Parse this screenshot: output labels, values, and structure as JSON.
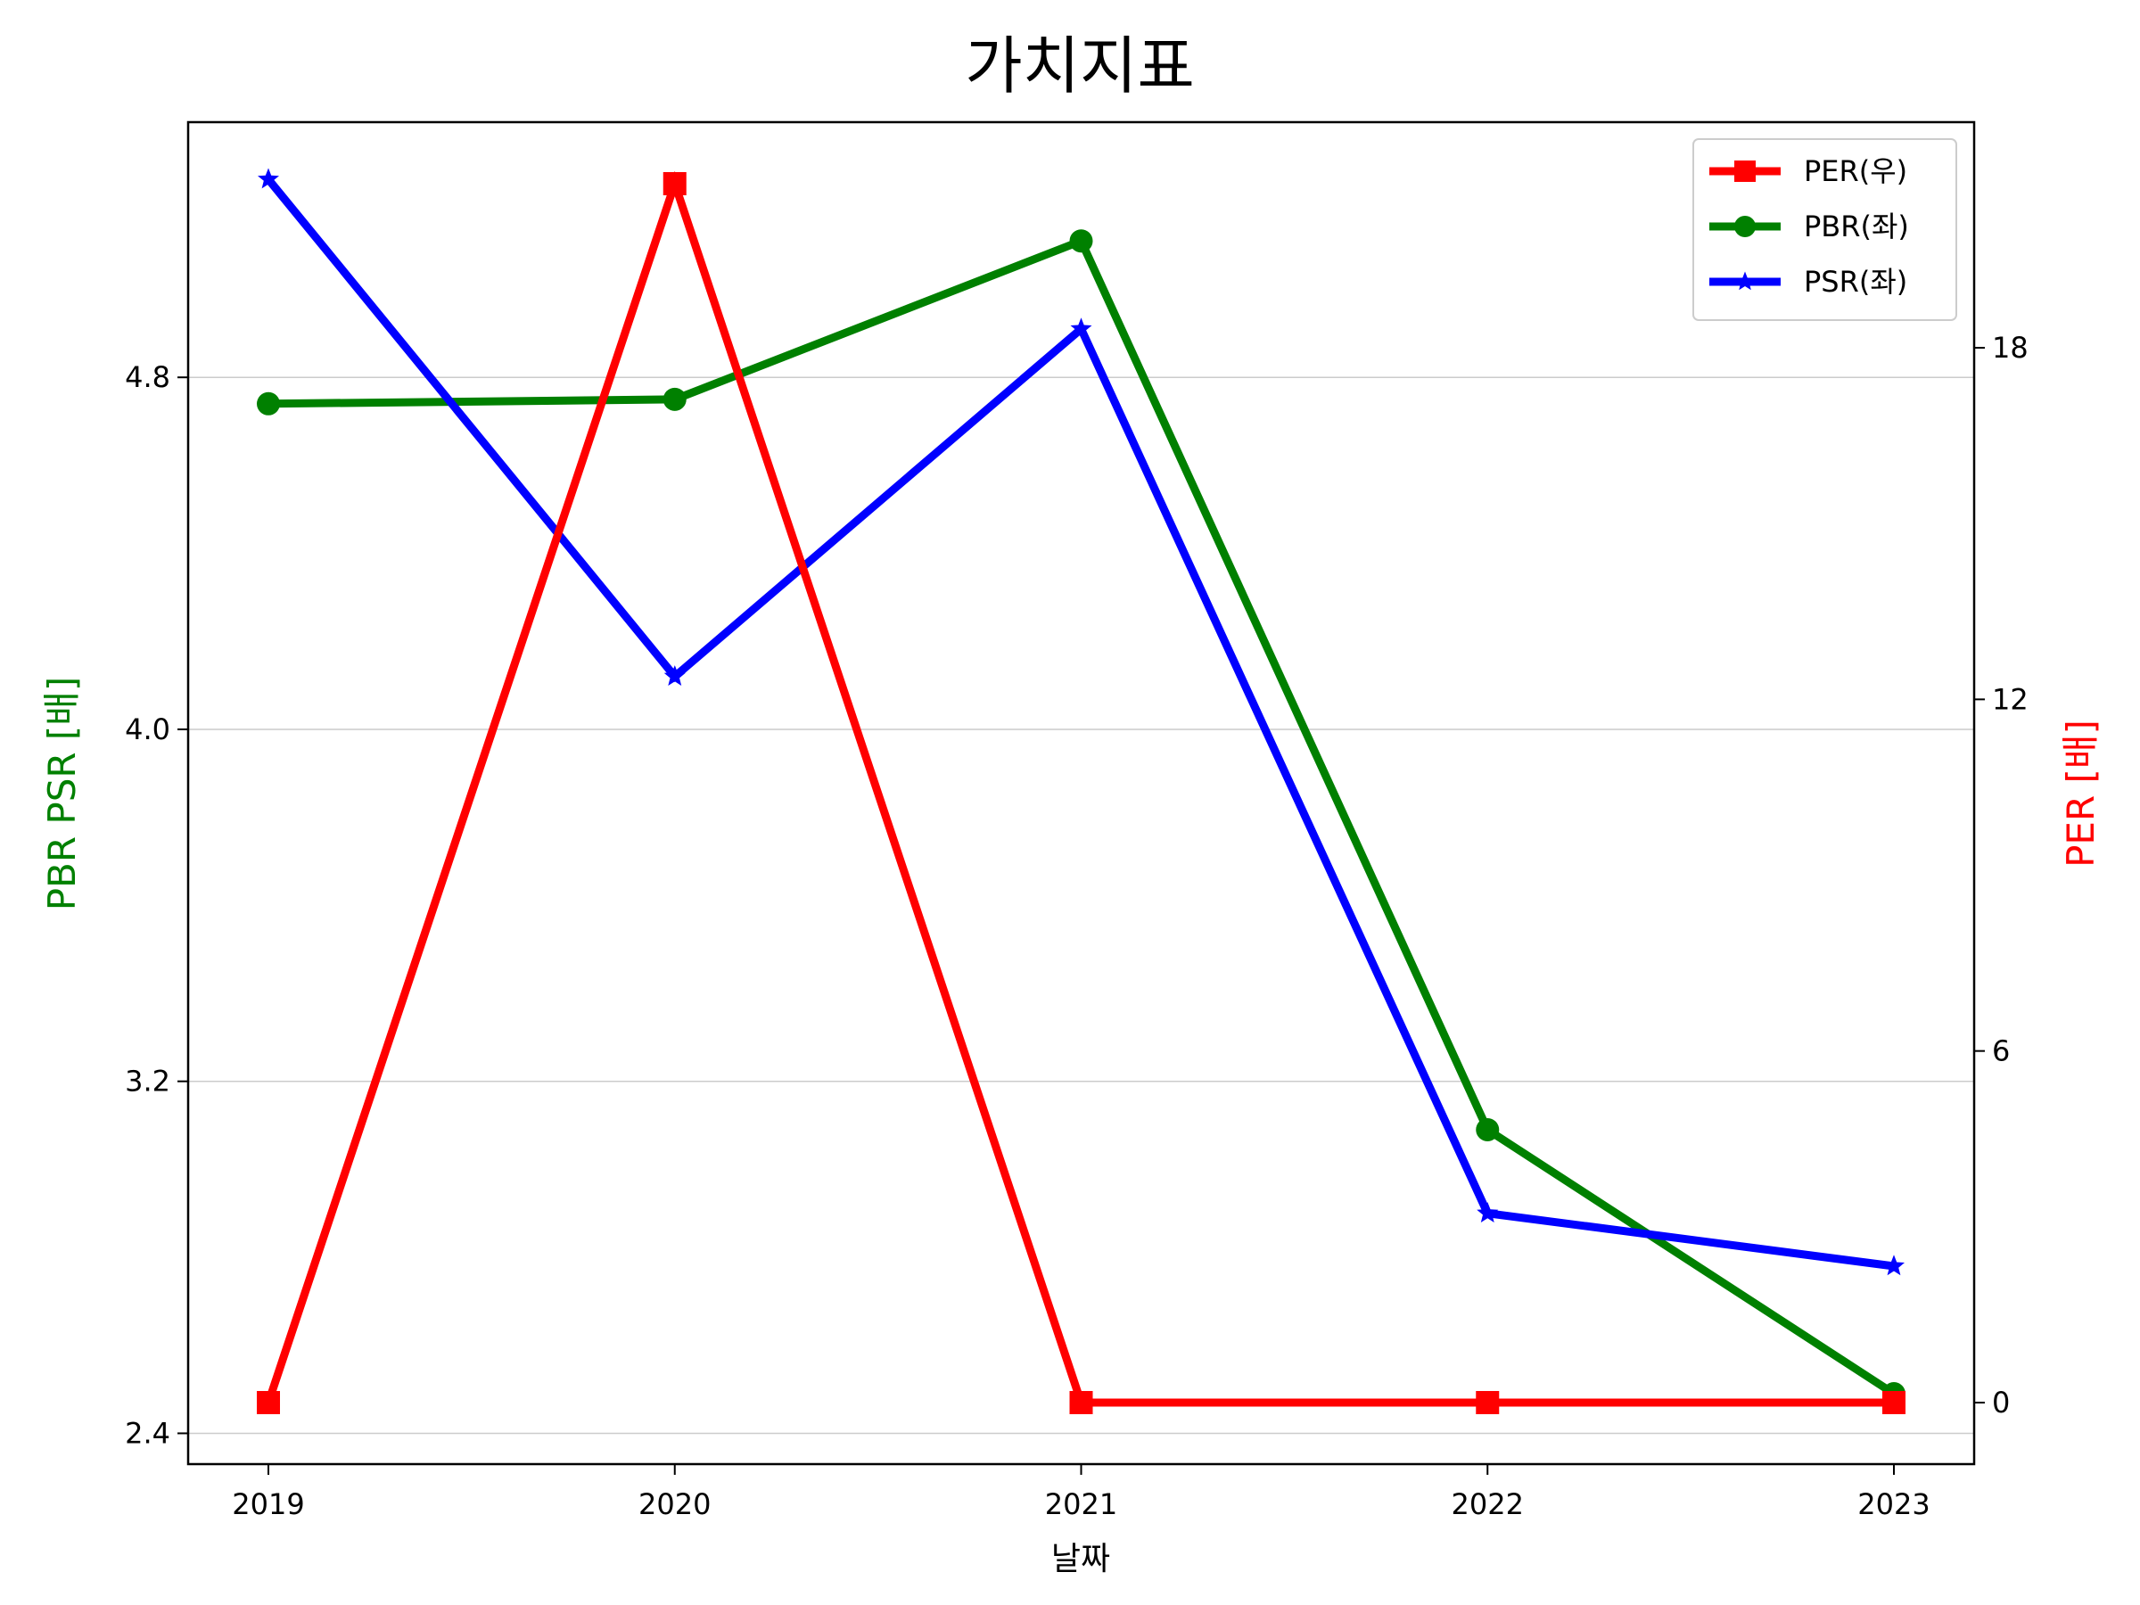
{
  "chart_data": {
    "type": "line",
    "title": "가치지표",
    "xlabel": "날짜",
    "ylabel_left": "PBR PSR [배]",
    "ylabel_right": "PER [배]",
    "colors": {
      "ylabel_left": "#008000",
      "ylabel_right": "#ff0000"
    },
    "x": [
      "2019",
      "2020",
      "2021",
      "2022",
      "2023"
    ],
    "y_left": {
      "ticks": [
        "2.4",
        "3.2",
        "4.0",
        "4.8"
      ],
      "range": [
        2.33,
        5.38
      ]
    },
    "y_right": {
      "ticks": [
        "0",
        "6",
        "12",
        "18"
      ],
      "range": [
        -1.05,
        21.85
      ]
    },
    "grid": "horizontal-left",
    "legend_position": "top-right",
    "series": [
      {
        "name": "PER(우)",
        "axis": "right",
        "color": "#ff0000",
        "marker": "square",
        "values": [
          0,
          20.8,
          0,
          0,
          0
        ]
      },
      {
        "name": "PBR(좌)",
        "axis": "left",
        "color": "#008000",
        "marker": "circle",
        "values": [
          4.74,
          4.75,
          5.11,
          3.09,
          2.49
        ]
      },
      {
        "name": "PSR(좌)",
        "axis": "left",
        "color": "#0000ff",
        "marker": "star",
        "values": [
          5.25,
          4.12,
          4.91,
          2.9,
          2.78
        ]
      }
    ]
  }
}
